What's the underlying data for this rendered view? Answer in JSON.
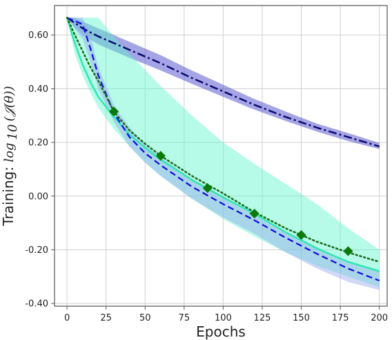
{
  "chart_data": {
    "type": "line",
    "title": "",
    "xlabel": "Epochs",
    "ylabel": "Training: log10(J(θ))",
    "ylabel_prefix": "Training: ",
    "ylabel_math": "log",
    "ylabel_math_sub": "10",
    "ylabel_math_rest": "(𝒥(θ))",
    "xlim": [
      -8,
      205
    ],
    "ylim": [
      -0.41,
      0.71
    ],
    "x_ticks": [
      0,
      25,
      50,
      75,
      100,
      125,
      150,
      175,
      200
    ],
    "x_tick_labels": [
      "0",
      "25",
      "50",
      "75",
      "100",
      "125",
      "150",
      "175",
      "200"
    ],
    "y_ticks": [
      0.6,
      0.4,
      0.2,
      0.0,
      -0.2,
      -0.4
    ],
    "y_tick_labels": [
      "0.60",
      "0.40",
      "0.20",
      "0.00",
      "-0.20",
      "-0.40"
    ],
    "grid": true,
    "legend": "none",
    "series": [
      {
        "style": "dashdot",
        "color": "#0a0a6e",
        "band_color": "#3838c8",
        "x": [
          0,
          5,
          10,
          20,
          30,
          40,
          50,
          60,
          80,
          100,
          120,
          140,
          160,
          180,
          200
        ],
        "values": [
          0.665,
          0.645,
          0.625,
          0.595,
          0.57,
          0.545,
          0.52,
          0.495,
          0.44,
          0.39,
          0.34,
          0.295,
          0.255,
          0.22,
          0.185
        ],
        "band_low": [
          0.665,
          0.625,
          0.6,
          0.565,
          0.54,
          0.515,
          0.492,
          0.468,
          0.418,
          0.37,
          0.322,
          0.28,
          0.24,
          0.205,
          0.175
        ],
        "band_high": [
          0.665,
          0.665,
          0.65,
          0.625,
          0.6,
          0.575,
          0.55,
          0.525,
          0.468,
          0.415,
          0.362,
          0.315,
          0.27,
          0.235,
          0.198
        ]
      },
      {
        "style": "solid",
        "color": "#2ee8b0",
        "band_color": "#5df5cc",
        "x": [
          0,
          5,
          10,
          15,
          20,
          30,
          40,
          50,
          60,
          80,
          100,
          120,
          140,
          160,
          180,
          200
        ],
        "values": [
          0.665,
          0.57,
          0.49,
          0.425,
          0.37,
          0.295,
          0.23,
          0.18,
          0.135,
          0.06,
          -0.005,
          -0.065,
          -0.135,
          -0.195,
          -0.245,
          -0.28
        ],
        "band_low": [
          0.665,
          0.53,
          0.45,
          0.385,
          0.33,
          0.25,
          0.185,
          0.125,
          0.075,
          -0.01,
          -0.085,
          -0.15,
          -0.21,
          -0.26,
          -0.3,
          -0.34
        ],
        "band_high": [
          0.665,
          0.665,
          0.665,
          0.665,
          0.665,
          0.595,
          0.53,
          0.47,
          0.41,
          0.3,
          0.2,
          0.12,
          0.045,
          -0.03,
          -0.12,
          -0.2
        ]
      },
      {
        "style": "dashed",
        "color": "#1010e0",
        "band_color": "#9aa8f0",
        "x": [
          0,
          10,
          15,
          20,
          30,
          40,
          50,
          60,
          80,
          100,
          120,
          140,
          160,
          180,
          200
        ],
        "values": [
          0.665,
          0.64,
          0.55,
          0.45,
          0.31,
          0.22,
          0.16,
          0.115,
          0.035,
          -0.03,
          -0.09,
          -0.155,
          -0.215,
          -0.27,
          -0.315
        ],
        "band_low": [
          0.665,
          0.585,
          0.5,
          0.4,
          0.275,
          0.185,
          0.125,
          0.075,
          -0.01,
          -0.08,
          -0.14,
          -0.21,
          -0.27,
          -0.32,
          -0.35
        ],
        "band_high": [
          0.665,
          0.665,
          0.6,
          0.48,
          0.34,
          0.255,
          0.19,
          0.145,
          0.065,
          0.0,
          -0.065,
          -0.13,
          -0.19,
          -0.245,
          -0.28
        ]
      },
      {
        "style": "dotted",
        "color": "#1a6e1a",
        "marker": "diamond",
        "marker_color": "#0a7a0a",
        "x": [
          0,
          5,
          10,
          15,
          20,
          30,
          40,
          50,
          60,
          80,
          100,
          120,
          140,
          160,
          180,
          200
        ],
        "values": [
          0.665,
          0.6,
          0.54,
          0.48,
          0.43,
          0.315,
          0.245,
          0.195,
          0.15,
          0.075,
          0.01,
          -0.06,
          -0.12,
          -0.17,
          -0.21,
          -0.245
        ],
        "marker_x": [
          30,
          60,
          90,
          120,
          150,
          180
        ],
        "marker_y": [
          0.315,
          0.15,
          0.03,
          -0.065,
          -0.145,
          -0.205
        ]
      }
    ]
  }
}
